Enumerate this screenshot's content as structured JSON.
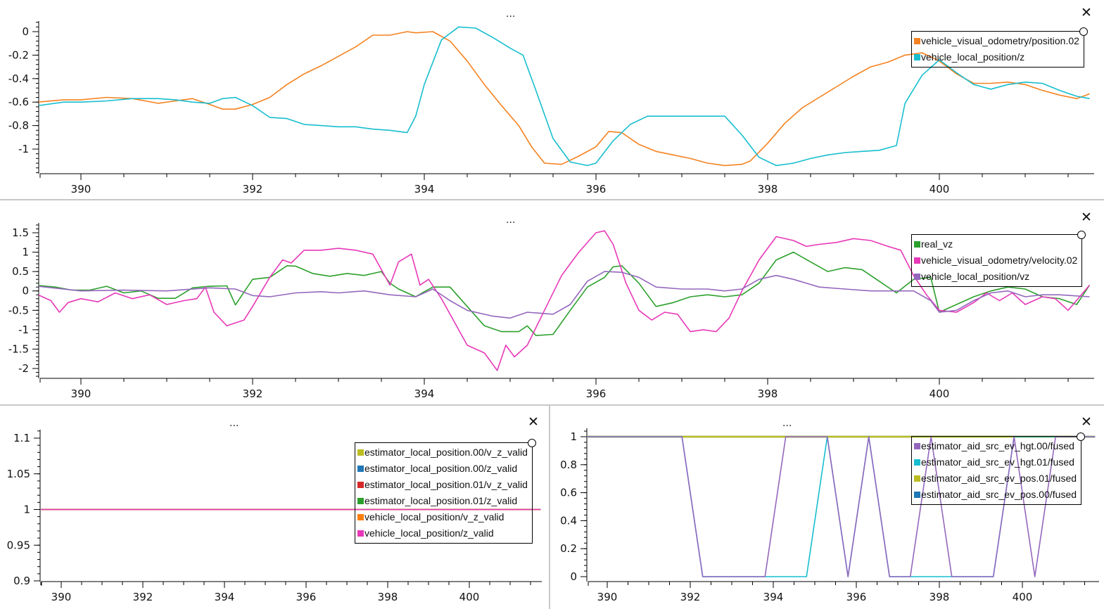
{
  "window": {
    "menu_dots": "...",
    "close_glyph": "✕"
  },
  "chart_data": [
    {
      "id": "top",
      "type": "line",
      "title": "",
      "xlabel": "",
      "ylabel": "",
      "xlim": [
        389.5,
        401.75
      ],
      "ylim": [
        -1.17,
        0.07
      ],
      "x_ticks": [
        390,
        392,
        394,
        396,
        398,
        400
      ],
      "y_ticks": [
        0,
        -0.2,
        -0.4,
        -0.6,
        -0.8,
        -1
      ],
      "y_tick_labels": [
        "0",
        "-0.2",
        "-0.4",
        "-0.6",
        "-0.8",
        "-1"
      ],
      "legend_position": "top-right",
      "series": [
        {
          "name": "vehicle_visual_odometry/position.02",
          "color": "#f58220",
          "x": [
            389.5,
            389.8,
            390.0,
            390.3,
            390.6,
            390.9,
            391.1,
            391.3,
            391.5,
            391.65,
            391.8,
            392.0,
            392.2,
            392.4,
            392.6,
            392.8,
            393.0,
            393.2,
            393.4,
            393.6,
            393.8,
            393.9,
            394.1,
            394.3,
            394.5,
            394.7,
            394.9,
            395.1,
            395.25,
            395.4,
            395.6,
            395.8,
            396.0,
            396.15,
            396.3,
            396.5,
            396.7,
            396.9,
            397.1,
            397.3,
            397.5,
            397.7,
            397.8,
            398.0,
            398.2,
            398.4,
            398.6,
            398.8,
            399.0,
            399.2,
            399.4,
            399.6,
            399.8,
            400.0,
            400.2,
            400.4,
            400.6,
            400.8,
            401.0,
            401.2,
            401.4,
            401.6,
            401.75
          ],
          "y": [
            -0.6,
            -0.58,
            -0.58,
            -0.56,
            -0.57,
            -0.61,
            -0.59,
            -0.57,
            -0.62,
            -0.66,
            -0.66,
            -0.62,
            -0.56,
            -0.45,
            -0.36,
            -0.29,
            -0.21,
            -0.13,
            -0.03,
            -0.03,
            0.0,
            -0.01,
            0.0,
            -0.08,
            -0.25,
            -0.45,
            -0.63,
            -0.8,
            -0.98,
            -1.12,
            -1.13,
            -1.06,
            -0.98,
            -0.85,
            -0.86,
            -0.96,
            -1.02,
            -1.05,
            -1.08,
            -1.12,
            -1.14,
            -1.13,
            -1.1,
            -0.95,
            -0.78,
            -0.65,
            -0.56,
            -0.47,
            -0.38,
            -0.3,
            -0.26,
            -0.2,
            -0.18,
            -0.25,
            -0.36,
            -0.44,
            -0.44,
            -0.43,
            -0.45,
            -0.5,
            -0.54,
            -0.57,
            -0.53
          ]
        },
        {
          "name": "vehicle_local_position/z",
          "color": "#17becf",
          "x": [
            389.5,
            389.8,
            390.0,
            390.3,
            390.6,
            390.9,
            391.1,
            391.3,
            391.5,
            391.65,
            391.8,
            392.0,
            392.2,
            392.4,
            392.6,
            392.8,
            393.0,
            393.2,
            393.4,
            393.6,
            393.8,
            393.9,
            394.0,
            394.2,
            394.4,
            394.6,
            394.8,
            395.0,
            395.15,
            395.3,
            395.5,
            395.7,
            395.9,
            396.0,
            396.2,
            396.4,
            396.6,
            396.8,
            397.0,
            397.2,
            397.5,
            397.7,
            397.9,
            398.1,
            398.3,
            398.5,
            398.7,
            398.9,
            399.1,
            399.3,
            399.5,
            399.6,
            399.8,
            400.0,
            400.2,
            400.4,
            400.6,
            400.8,
            401.0,
            401.2,
            401.4,
            401.6,
            401.75
          ],
          "y": [
            -0.63,
            -0.6,
            -0.6,
            -0.59,
            -0.57,
            -0.57,
            -0.58,
            -0.6,
            -0.61,
            -0.57,
            -0.56,
            -0.63,
            -0.73,
            -0.74,
            -0.79,
            -0.8,
            -0.81,
            -0.81,
            -0.83,
            -0.84,
            -0.86,
            -0.72,
            -0.45,
            -0.07,
            0.04,
            0.03,
            -0.05,
            -0.14,
            -0.2,
            -0.5,
            -0.91,
            -1.11,
            -1.14,
            -1.12,
            -0.93,
            -0.79,
            -0.72,
            -0.72,
            -0.72,
            -0.72,
            -0.72,
            -0.88,
            -1.07,
            -1.14,
            -1.12,
            -1.08,
            -1.05,
            -1.03,
            -1.02,
            -1.01,
            -0.97,
            -0.61,
            -0.37,
            -0.24,
            -0.35,
            -0.45,
            -0.49,
            -0.45,
            -0.43,
            -0.44,
            -0.5,
            -0.55,
            -0.57
          ]
        }
      ]
    },
    {
      "id": "middle",
      "type": "line",
      "title": "",
      "xlabel": "",
      "ylabel": "",
      "xlim": [
        389.5,
        401.75
      ],
      "ylim": [
        -2.2,
        1.65
      ],
      "x_ticks": [
        390,
        392,
        394,
        396,
        398,
        400
      ],
      "y_ticks": [
        1.5,
        1,
        0.5,
        0,
        -0.5,
        -1,
        -1.5,
        -2
      ],
      "y_tick_labels": [
        "1.5",
        "1",
        "0.5",
        "0",
        "-0.5",
        "-1",
        "-1.5",
        "-2"
      ],
      "legend_position": "top-right",
      "series": [
        {
          "name": "real_vz",
          "color": "#2ca02c",
          "x": [
            389.5,
            389.7,
            389.9,
            390.1,
            390.3,
            390.5,
            390.7,
            390.9,
            391.1,
            391.3,
            391.5,
            391.7,
            391.8,
            392.0,
            392.2,
            392.4,
            392.5,
            392.7,
            392.9,
            393.1,
            393.3,
            393.5,
            393.6,
            393.7,
            393.9,
            394.0,
            394.1,
            394.3,
            394.5,
            394.7,
            394.9,
            395.1,
            395.2,
            395.3,
            395.5,
            395.7,
            395.9,
            396.1,
            396.2,
            396.3,
            396.5,
            396.7,
            396.9,
            397.1,
            397.3,
            397.5,
            397.7,
            397.9,
            398.1,
            398.3,
            398.5,
            398.7,
            398.9,
            399.1,
            399.3,
            399.5,
            399.7,
            399.9,
            400.0,
            400.2,
            400.4,
            400.6,
            400.8,
            401.0,
            401.2,
            401.4,
            401.6,
            401.75
          ],
          "y": [
            0.14,
            0.1,
            0.02,
            0.02,
            0.12,
            -0.05,
            0.0,
            -0.19,
            -0.19,
            0.08,
            0.12,
            0.13,
            -0.36,
            0.3,
            0.35,
            0.65,
            0.64,
            0.45,
            0.38,
            0.45,
            0.4,
            0.5,
            0.2,
            0.05,
            -0.15,
            -0.02,
            0.1,
            0.1,
            -0.4,
            -0.9,
            -1.05,
            -1.05,
            -0.9,
            -1.15,
            -1.12,
            -0.5,
            0.1,
            0.35,
            0.62,
            0.65,
            0.2,
            -0.4,
            -0.3,
            -0.15,
            -0.1,
            -0.15,
            -0.1,
            0.2,
            0.8,
            1.0,
            0.75,
            0.5,
            0.6,
            0.55,
            0.25,
            -0.05,
            0.3,
            0.35,
            -0.55,
            -0.35,
            -0.15,
            0.0,
            0.1,
            0.05,
            -0.15,
            -0.2,
            -0.35,
            0.15
          ],
          "note": "approximate"
        },
        {
          "name": "vehicle_visual_odometry/velocity.02",
          "color": "#e838b8",
          "x": [
            389.5,
            389.65,
            389.75,
            389.85,
            390.0,
            390.2,
            390.4,
            390.6,
            390.8,
            391.0,
            391.2,
            391.35,
            391.45,
            391.55,
            391.7,
            391.9,
            392.0,
            392.2,
            392.35,
            392.45,
            392.6,
            392.8,
            393.0,
            393.2,
            393.4,
            393.6,
            393.7,
            393.85,
            393.95,
            394.05,
            394.2,
            394.3,
            394.5,
            394.7,
            394.85,
            394.95,
            395.05,
            395.2,
            395.4,
            395.6,
            395.8,
            396.0,
            396.1,
            396.2,
            396.35,
            396.5,
            396.65,
            396.8,
            396.95,
            397.1,
            397.25,
            397.4,
            397.55,
            397.7,
            397.9,
            398.1,
            398.3,
            398.45,
            398.6,
            398.8,
            399.0,
            399.2,
            399.4,
            399.55,
            399.7,
            399.85,
            400.0,
            400.2,
            400.4,
            400.55,
            400.7,
            400.85,
            401.0,
            401.2,
            401.35,
            401.5,
            401.75
          ],
          "y": [
            -0.1,
            -0.25,
            -0.55,
            -0.3,
            -0.2,
            -0.28,
            -0.05,
            -0.2,
            -0.1,
            -0.35,
            -0.25,
            -0.2,
            0.1,
            -0.55,
            -0.9,
            -0.75,
            -0.4,
            0.35,
            0.8,
            0.72,
            1.05,
            1.05,
            1.1,
            1.05,
            0.95,
            0.15,
            0.75,
            0.95,
            0.15,
            0.3,
            -0.2,
            -0.6,
            -1.4,
            -1.6,
            -2.05,
            -1.4,
            -1.7,
            -1.4,
            -0.5,
            0.4,
            1.0,
            1.5,
            1.55,
            1.2,
            0.2,
            -0.5,
            -0.75,
            -0.55,
            -0.6,
            -1.05,
            -1.0,
            -1.05,
            -0.7,
            0.0,
            0.8,
            1.4,
            1.3,
            1.15,
            1.2,
            1.25,
            1.35,
            1.3,
            1.15,
            1.05,
            0.4,
            -0.1,
            -0.5,
            -0.55,
            -0.3,
            -0.05,
            -0.25,
            -0.05,
            -0.35,
            -0.15,
            -0.2,
            -0.5,
            0.15
          ],
          "note": "approximate"
        },
        {
          "name": "vehicle_local_position/vz",
          "color": "#9467bd",
          "x": [
            389.5,
            390.0,
            390.5,
            391.0,
            391.5,
            391.8,
            392.0,
            392.2,
            392.5,
            392.8,
            393.0,
            393.3,
            393.6,
            393.9,
            394.1,
            394.3,
            394.5,
            394.8,
            395.0,
            395.2,
            395.5,
            395.7,
            395.9,
            396.1,
            396.3,
            396.5,
            396.7,
            397.0,
            397.3,
            397.5,
            397.7,
            397.9,
            398.1,
            398.3,
            398.6,
            398.9,
            399.2,
            399.5,
            399.7,
            399.9,
            400.0,
            400.2,
            400.4,
            400.6,
            400.8,
            401.0,
            401.2,
            401.4,
            401.75
          ],
          "y": [
            0.12,
            0.0,
            0.02,
            0.0,
            0.08,
            0.05,
            -0.12,
            -0.15,
            -0.05,
            -0.02,
            -0.05,
            0.0,
            -0.1,
            -0.15,
            0.05,
            -0.25,
            -0.5,
            -0.65,
            -0.7,
            -0.55,
            -0.6,
            -0.35,
            0.25,
            0.5,
            0.48,
            0.35,
            0.1,
            0.05,
            0.05,
            0.0,
            0.05,
            0.3,
            0.4,
            0.3,
            0.1,
            0.05,
            0.0,
            0.0,
            0.0,
            -0.25,
            -0.55,
            -0.5,
            -0.25,
            -0.05,
            0.0,
            -0.15,
            -0.1,
            -0.1,
            -0.15
          ],
          "note": "approximate"
        }
      ]
    },
    {
      "id": "bottom-left",
      "type": "line",
      "title": "",
      "xlabel": "",
      "ylabel": "",
      "xlim": [
        389.5,
        401.75
      ],
      "ylim": [
        0.9,
        1.1
      ],
      "x_ticks": [
        390,
        392,
        394,
        396,
        398,
        400
      ],
      "y_ticks": [
        1.1,
        1.05,
        1,
        0.95,
        0.9
      ],
      "y_tick_labels": [
        "1.1",
        "1.05",
        "1",
        "0.95",
        "0.9"
      ],
      "legend_position": "top-right",
      "series": [
        {
          "name": "estimator_local_position.00/v_z_valid",
          "color": "#bcbd22",
          "x": [
            389.5,
            401.75
          ],
          "y": [
            1,
            1
          ]
        },
        {
          "name": "estimator_local_position.00/z_valid",
          "color": "#1f77b4",
          "x": [
            389.5,
            401.75
          ],
          "y": [
            1,
            1
          ]
        },
        {
          "name": "estimator_local_position.01/v_z_valid",
          "color": "#d62728",
          "x": [
            389.5,
            401.75
          ],
          "y": [
            1,
            1
          ]
        },
        {
          "name": "estimator_local_position.01/z_valid",
          "color": "#2ca02c",
          "x": [
            389.5,
            401.75
          ],
          "y": [
            1,
            1
          ]
        },
        {
          "name": "vehicle_local_position/v_z_valid",
          "color": "#ff7f0e",
          "x": [
            389.5,
            401.75
          ],
          "y": [
            1,
            1
          ]
        },
        {
          "name": "vehicle_local_position/z_valid",
          "color": "#e838b8",
          "x": [
            389.5,
            401.75
          ],
          "y": [
            1,
            1
          ]
        }
      ]
    },
    {
      "id": "bottom-right",
      "type": "line",
      "title": "",
      "xlabel": "",
      "ylabel": "",
      "xlim": [
        389.5,
        401.75
      ],
      "ylim": [
        -0.02,
        1.0
      ],
      "x_ticks": [
        390,
        392,
        394,
        396,
        398,
        400
      ],
      "y_ticks": [
        1,
        0.8,
        0.6,
        0.4,
        0.2,
        0
      ],
      "y_tick_labels": [
        "1",
        "0.8",
        "0.6",
        "0.4",
        "0.2",
        "0"
      ],
      "legend_position": "top-right",
      "series": [
        {
          "name": "estimator_aid_src_ev_hgt.00/fused",
          "color": "#9467bd",
          "x": [
            389.5,
            391.8,
            392.3,
            393.8,
            394.3,
            395.3,
            395.8,
            396.3,
            396.8,
            397.3,
            397.8,
            398.3,
            399.3,
            399.8,
            400.3,
            400.8,
            401.75
          ],
          "y": [
            1,
            1,
            0,
            0,
            1,
            1,
            0,
            1,
            0,
            0,
            1,
            0,
            0,
            1,
            0,
            1,
            1
          ]
        },
        {
          "name": "estimator_aid_src_ev_hgt.01/fused",
          "color": "#17becf",
          "x": [
            389.5,
            391.8,
            392.3,
            394.8,
            395.3,
            395.8,
            396.3,
            396.8,
            399.3,
            399.8,
            401.75
          ],
          "y": [
            1,
            1,
            0,
            0,
            1,
            0,
            1,
            0,
            0,
            1,
            1
          ]
        },
        {
          "name": "estimator_aid_src_ev_pos.01/fused",
          "color": "#bcbd22",
          "x": [
            389.5,
            401.75
          ],
          "y": [
            1,
            1
          ]
        },
        {
          "name": "estimator_aid_src_ev_pos.00/fused",
          "color": "#1f77b4",
          "x": [
            389.5,
            401.75
          ],
          "y": [
            1,
            1
          ]
        }
      ]
    }
  ]
}
